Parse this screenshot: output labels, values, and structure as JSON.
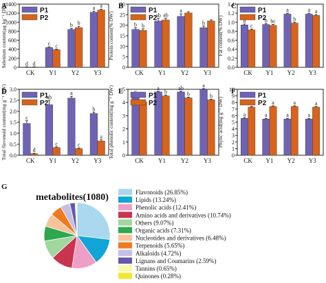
{
  "colors": {
    "P1": "#6f63b5",
    "P2": "#d8631b"
  },
  "chart_data": [
    {
      "panel": "A",
      "type": "bar",
      "ylabel": "Selenium content(μg kg⁻¹ DW)",
      "categories": [
        "CK",
        "Y1",
        "Y2",
        "Y3"
      ],
      "ylim": [
        0,
        1400
      ],
      "yticks": [
        0,
        200,
        400,
        600,
        800,
        1000,
        1200,
        1400
      ],
      "legend": "top-left",
      "series": [
        {
          "name": "P1",
          "values": [
            8,
            440,
            840,
            1220
          ],
          "errors": [
            3,
            15,
            25,
            25
          ],
          "letters": [
            "d",
            "c",
            "b",
            "a"
          ]
        },
        {
          "name": "P2",
          "values": [
            8,
            390,
            880,
            1270
          ],
          "errors": [
            3,
            15,
            30,
            20
          ],
          "letters": [
            "d",
            "c",
            "b",
            "a"
          ]
        }
      ]
    },
    {
      "panel": "B",
      "type": "bar",
      "ylabel": "Protein content(% DW)",
      "categories": [
        "CK",
        "Y1",
        "Y2",
        "Y3"
      ],
      "ylim": [
        0,
        30
      ],
      "yticks": [
        0,
        5,
        10,
        15,
        20,
        25,
        30
      ],
      "legend": "top-left",
      "series": [
        {
          "name": "P1",
          "values": [
            18,
            22,
            24.2,
            18.8
          ],
          "errors": [
            0.8,
            1.2,
            1.2,
            0.8
          ],
          "letters": [
            "b",
            "ab",
            "a",
            "b"
          ]
        },
        {
          "name": "P2",
          "values": [
            17.5,
            22.5,
            25.8,
            22
          ],
          "errors": [
            0.8,
            0.8,
            0.6,
            0.5
          ],
          "letters": [
            "b",
            "ab",
            "",
            ""
          ]
        }
      ]
    },
    {
      "panel": "C",
      "type": "bar",
      "ylabel": "Fat content(% DW)",
      "categories": [
        "CK",
        "Y1",
        "Y2",
        "Y3"
      ],
      "ylim": [
        0,
        1.4
      ],
      "yticks": [
        0.0,
        0.2,
        0.4,
        0.6,
        0.8,
        1.0,
        1.2,
        1.4
      ],
      "legend": "top-left",
      "series": [
        {
          "name": "P1",
          "values": [
            0.94,
            0.95,
            1.18,
            1.18
          ],
          "errors": [
            0.02,
            0.02,
            0.02,
            0.02
          ],
          "letters": [
            "b",
            "b",
            "a",
            "a"
          ]
        },
        {
          "name": "P2",
          "values": [
            0.83,
            0.93,
            0.98,
            1.15
          ],
          "errors": [
            0.02,
            0.02,
            0.02,
            0.02
          ],
          "letters": [
            "c",
            "bc",
            "b",
            "a"
          ]
        }
      ]
    },
    {
      "panel": "D",
      "type": "bar",
      "ylabel": "Total flavonoid content(mg g⁻¹ DW)",
      "categories": [
        "CK",
        "Y1",
        "Y2",
        "Y3"
      ],
      "ylim": [
        0,
        3.0
      ],
      "yticks": [
        0.0,
        0.5,
        1.0,
        1.5,
        2.0,
        2.5,
        3.0
      ],
      "legend": "top-left",
      "series": [
        {
          "name": "P1",
          "values": [
            1.45,
            2.3,
            2.6,
            1.9
          ],
          "errors": [
            0.12,
            0.2,
            0.08,
            0.06
          ],
          "letters": [
            "c",
            "ab",
            "a",
            "b"
          ]
        },
        {
          "name": "P2",
          "values": [
            0.07,
            0.35,
            0.3,
            0.65
          ],
          "errors": [
            0.02,
            0.03,
            0.03,
            0.05
          ],
          "letters": [
            "d",
            "c",
            "c",
            "a"
          ]
        }
      ]
    },
    {
      "panel": "E",
      "type": "bar",
      "ylabel": "Total phenolic content(mg g⁻¹ DW)",
      "categories": [
        "CK",
        "Y1",
        "Y2",
        "Y3"
      ],
      "ylim": [
        0,
        5
      ],
      "yticks": [
        0,
        1,
        2,
        3,
        4,
        5
      ],
      "legend": "top-left",
      "series": [
        {
          "name": "P1",
          "values": [
            4.5,
            4.8,
            4.8,
            5.0
          ],
          "errors": [
            0.08,
            0.05,
            0.05,
            0.05
          ],
          "letters": [
            "c",
            "a",
            "ab",
            "a"
          ]
        },
        {
          "name": "P2",
          "values": [
            4.05,
            4.5,
            4.35,
            4.2
          ],
          "errors": [
            0.05,
            0.05,
            0.05,
            0.05
          ],
          "letters": [
            "",
            "b",
            "b",
            "b"
          ]
        }
      ]
    },
    {
      "panel": "F",
      "type": "bar",
      "ylabel": "Phytic acid(mg g⁻¹ DW)",
      "categories": [
        "CK",
        "Y1",
        "Y2",
        "Y3"
      ],
      "ylim": [
        0,
        10
      ],
      "yticks": [
        0,
        1,
        2,
        3,
        4,
        5,
        6,
        7,
        8,
        9,
        10
      ],
      "legend": "top-left",
      "series": [
        {
          "name": "P1",
          "values": [
            5.6,
            5.5,
            5.5,
            5.5
          ],
          "errors": [
            0.1,
            0.1,
            0.1,
            0.1
          ],
          "letters": [
            "a",
            "a",
            "a",
            "a"
          ]
        },
        {
          "name": "P2",
          "values": [
            7.3,
            7.4,
            7.4,
            7.3
          ],
          "errors": [
            0.1,
            0.1,
            0.1,
            0.1
          ],
          "letters": [
            "a",
            "a",
            "a",
            "a"
          ]
        }
      ]
    },
    {
      "panel": "G",
      "type": "pie",
      "title": "metabolites(1080)",
      "legend": "right",
      "slices": [
        {
          "label": "Flavonoids (26.85%)",
          "value": 26.85,
          "color": "#a9d8ef"
        },
        {
          "label": "Lipids (13.24%)",
          "value": 13.24,
          "color": "#12a5d8"
        },
        {
          "label": "Phenolic acids (12.41%)",
          "value": 12.41,
          "color": "#ee9fc6"
        },
        {
          "label": "Amino acids and derivatives (10.74%)",
          "value": 10.74,
          "color": "#c9344f"
        },
        {
          "label": "Others (9.07%)",
          "value": 9.07,
          "color": "#9fd79f"
        },
        {
          "label": "Organic acids (7.31%)",
          "value": 7.31,
          "color": "#2ea84f"
        },
        {
          "label": "Nucleotides and derivatives (6.48%)",
          "value": 6.48,
          "color": "#f7c39a"
        },
        {
          "label": "Terpenoids (5.65%)",
          "value": 5.65,
          "color": "#ef7a1f"
        },
        {
          "label": "Alkaloids (4.72%)",
          "value": 4.72,
          "color": "#c4c0e2"
        },
        {
          "label": "Lignans and Coumarins (2.59%)",
          "value": 2.59,
          "color": "#6557ad"
        },
        {
          "label": "Tannins (0.65%)",
          "value": 0.65,
          "color": "#faf7a8"
        },
        {
          "label": "Quinones (0.28%)",
          "value": 0.28,
          "color": "#f4e634"
        }
      ]
    }
  ]
}
